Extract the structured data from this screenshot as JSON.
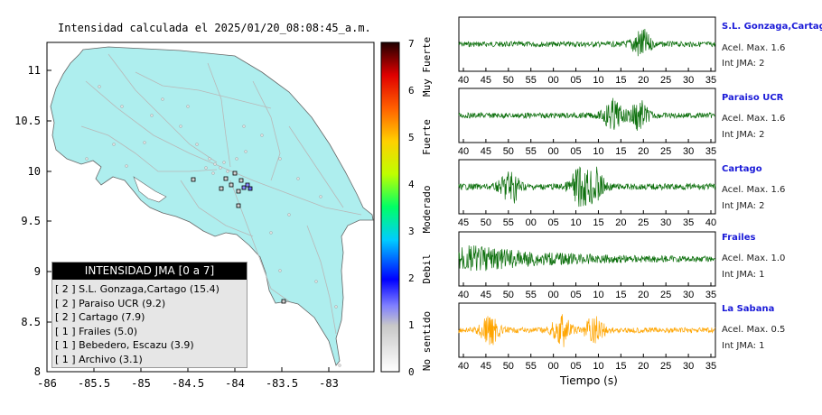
{
  "map": {
    "title": "Intensidad calculada el 2025/01/20_08:08:45_a.m.",
    "x_ticks": [
      "-86",
      "-85.5",
      "-85",
      "-84.5",
      "-84",
      "-83.5",
      "-83"
    ],
    "y_ticks": [
      "11",
      "10.5",
      "10",
      "9.5",
      "9",
      "8.5",
      "8"
    ],
    "land_color": "#aeeeee",
    "sea_color": "#ffffff"
  },
  "colorbar": {
    "ticks": [
      "0",
      "1",
      "2",
      "3",
      "4",
      "5",
      "6",
      "7"
    ],
    "labels": [
      "No sentido",
      "Debil",
      "Moderado",
      "Fuerte",
      "Muy Fuerte"
    ]
  },
  "legend": {
    "title": "INTENSIDAD JMA [0 a 7]",
    "items": [
      "[ 2 ]  S.L. Gonzaga,Cartago (15.4)",
      "[ 2 ]  Paraiso UCR (9.2)",
      "[ 2 ]  Cartago (7.9)",
      "[ 1 ]  Frailes (5.0)",
      "[ 1 ]  Bebedero, Escazu (3.9)",
      "[ 1 ]  Archivo (3.1)"
    ]
  },
  "stations": [
    {
      "name": "S.L. Gonzaga,Cartago",
      "accel": "Acel. Max. 1.6",
      "int": "Int JMA: 2",
      "color": "#0a6e0a",
      "ticks": [
        "40",
        "45",
        "50",
        "55",
        "00",
        "05",
        "10",
        "15",
        "20",
        "25",
        "30",
        "35"
      ]
    },
    {
      "name": "Paraiso UCR",
      "accel": "Acel. Max. 1.6",
      "int": "Int JMA: 2",
      "color": "#0a6e0a",
      "ticks": [
        "40",
        "45",
        "50",
        "55",
        "00",
        "05",
        "10",
        "15",
        "20",
        "25",
        "30",
        "35"
      ]
    },
    {
      "name": "Cartago",
      "accel": "Acel. Max. 1.6",
      "int": "Int JMA: 2",
      "color": "#0a6e0a",
      "ticks": [
        "45",
        "50",
        "55",
        "00",
        "05",
        "10",
        "15",
        "20",
        "25",
        "30",
        "35",
        "40"
      ]
    },
    {
      "name": "Frailes",
      "accel": "Acel. Max. 1.0",
      "int": "Int JMA: 1",
      "color": "#0a6e0a",
      "ticks": [
        "40",
        "45",
        "50",
        "55",
        "00",
        "05",
        "10",
        "15",
        "20",
        "25",
        "30",
        "35"
      ]
    },
    {
      "name": "La Sabana",
      "accel": "Acel. Max. 0.5",
      "int": "Int JMA: 1",
      "color": "#ffa500",
      "ticks": [
        "40",
        "45",
        "50",
        "55",
        "00",
        "05",
        "10",
        "15",
        "20",
        "25",
        "30",
        "35"
      ]
    }
  ],
  "waveforms": {
    "x_title": "Tiempo (s)"
  }
}
